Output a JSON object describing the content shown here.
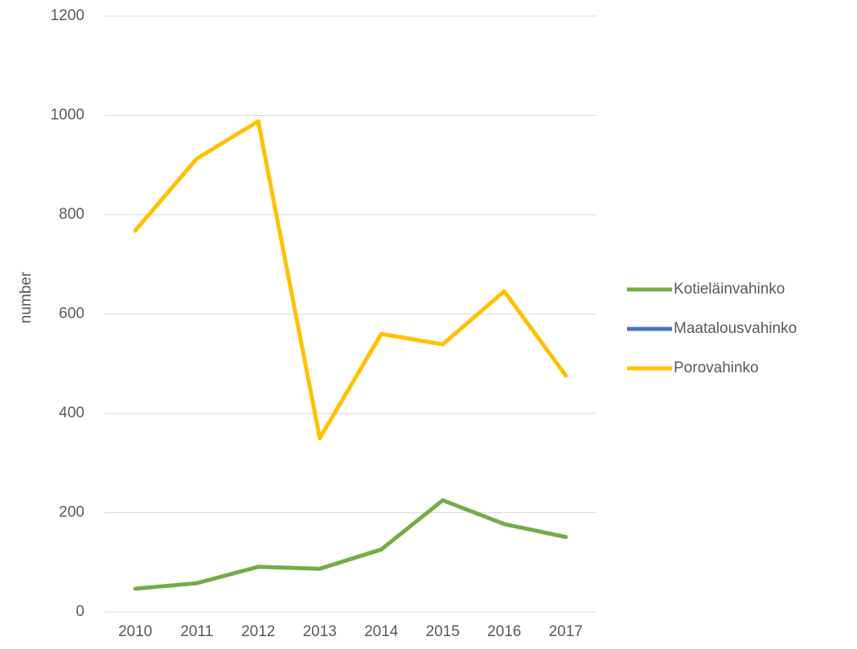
{
  "chart_data": {
    "type": "line",
    "y_label": "number",
    "categories": [
      "2010",
      "2011",
      "2012",
      "2013",
      "2014",
      "2015",
      "2016",
      "2017"
    ],
    "series": [
      {
        "name": "Kotieläinvahinko",
        "color": "#70ad47",
        "values": [
          47,
          58,
          91,
          87,
          126,
          225,
          177,
          151
        ]
      },
      {
        "name": "Maatalousvahinko",
        "color": "#4472c4",
        "values": [
          null,
          null,
          null,
          null,
          null,
          null,
          null,
          null
        ]
      },
      {
        "name": "Porovahinko",
        "color": "#ffc000",
        "values": [
          768,
          913,
          988,
          350,
          560,
          539,
          646,
          476
        ]
      }
    ],
    "ylim": [
      0,
      1200
    ],
    "yticks": [
      0,
      200,
      400,
      600,
      800,
      1000,
      1200
    ],
    "grid": true,
    "legend": "right"
  }
}
